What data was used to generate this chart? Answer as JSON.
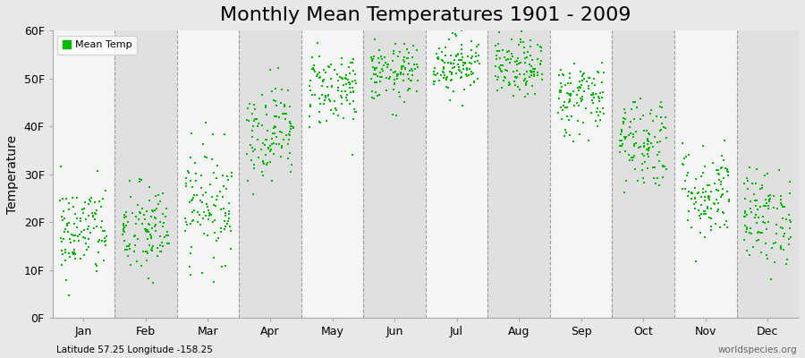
{
  "title": "Monthly Mean Temperatures 1901 - 2009",
  "ylabel": "Temperature",
  "ylim": [
    0,
    60
  ],
  "yticks": [
    0,
    10,
    20,
    30,
    40,
    50,
    60
  ],
  "ytick_labels": [
    "0F",
    "10F",
    "20F",
    "30F",
    "40F",
    "50F",
    "60F"
  ],
  "months": [
    "Jan",
    "Feb",
    "Mar",
    "Apr",
    "May",
    "Jun",
    "Jul",
    "Aug",
    "Sep",
    "Oct",
    "Nov",
    "Dec"
  ],
  "dot_color": "#00BB00",
  "figure_bg": "#e8e8e8",
  "band_color_light": "#f5f5f5",
  "band_color_dark": "#e0e0e0",
  "legend_label": "Mean Temp",
  "footnote_left": "Latitude 57.25 Longitude -158.25",
  "footnote_right": "worldspecies.org",
  "title_fontsize": 16,
  "axis_fontsize": 10,
  "tick_fontsize": 9,
  "mean_temps": [
    18,
    18,
    24,
    39,
    48,
    51,
    53,
    52,
    46,
    37,
    26,
    21
  ],
  "std_temps": [
    5,
    5,
    6,
    5,
    4,
    3,
    3,
    3,
    4,
    5,
    5,
    5
  ],
  "n_years": 109
}
